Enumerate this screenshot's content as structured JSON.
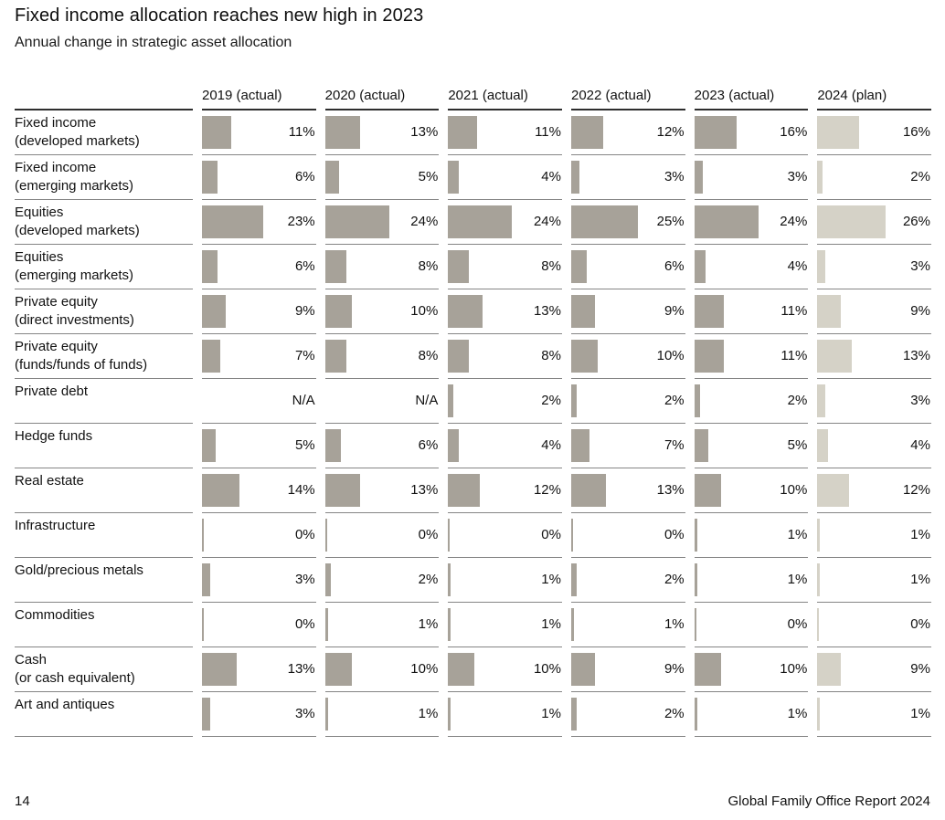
{
  "page": {
    "title": "Fixed income allocation reaches new high in 2023",
    "subtitle": "Annual change in strategic asset allocation",
    "footer_page_number": "14",
    "footer_report_name": "Global Family Office Report 2024"
  },
  "colors": {
    "actual_bar": "#a7a299",
    "plan_bar": "#d5d2c7",
    "row_rule": "#858585",
    "header_rule": "#2e2e2e"
  },
  "chart_data": {
    "type": "bar",
    "title": "Fixed income allocation reaches new high in 2023",
    "subtitle": "Annual change in strategic asset allocation",
    "unit": "percent",
    "value_range": [
      0,
      26
    ],
    "columns": [
      "2019 (actual)",
      "2020 (actual)",
      "2021 (actual)",
      "2022 (actual)",
      "2023 (actual)",
      "2024 (plan)"
    ],
    "rows": [
      {
        "label": "Fixed income",
        "sublabel": "(developed markets)",
        "values": [
          11,
          13,
          11,
          12,
          16,
          16
        ],
        "display": [
          "11%",
          "13%",
          "11%",
          "12%",
          "16%",
          "16%"
        ]
      },
      {
        "label": "Fixed income",
        "sublabel": "(emerging markets)",
        "values": [
          6,
          5,
          4,
          3,
          3,
          2
        ],
        "display": [
          "6%",
          "5%",
          "4%",
          "3%",
          "3%",
          "2%"
        ]
      },
      {
        "label": "Equities",
        "sublabel": "(developed markets)",
        "values": [
          23,
          24,
          24,
          25,
          24,
          26
        ],
        "display": [
          "23%",
          "24%",
          "24%",
          "25%",
          "24%",
          "26%"
        ]
      },
      {
        "label": "Equities",
        "sublabel": "(emerging markets)",
        "values": [
          6,
          8,
          8,
          6,
          4,
          3
        ],
        "display": [
          "6%",
          "8%",
          "8%",
          "6%",
          "4%",
          "3%"
        ]
      },
      {
        "label": "Private equity",
        "sublabel": "(direct investments)",
        "values": [
          9,
          10,
          13,
          9,
          11,
          9
        ],
        "display": [
          "9%",
          "10%",
          "13%",
          "9%",
          "11%",
          "9%"
        ]
      },
      {
        "label": "Private equity",
        "sublabel": "(funds/funds of funds)",
        "values": [
          7,
          8,
          8,
          10,
          11,
          13
        ],
        "display": [
          "7%",
          "8%",
          "8%",
          "10%",
          "11%",
          "13%"
        ]
      },
      {
        "label": "Private debt",
        "sublabel": "",
        "values": [
          null,
          null,
          2,
          2,
          2,
          3
        ],
        "display": [
          "N/A",
          "N/A",
          "2%",
          "2%",
          "2%",
          "3%"
        ]
      },
      {
        "label": "Hedge funds",
        "sublabel": "",
        "values": [
          5,
          6,
          4,
          7,
          5,
          4
        ],
        "display": [
          "5%",
          "6%",
          "4%",
          "7%",
          "5%",
          "4%"
        ]
      },
      {
        "label": "Real estate",
        "sublabel": "",
        "values": [
          14,
          13,
          12,
          13,
          10,
          12
        ],
        "display": [
          "14%",
          "13%",
          "12%",
          "13%",
          "10%",
          "12%"
        ]
      },
      {
        "label": "Infrastructure",
        "sublabel": "",
        "values": [
          0,
          0,
          0,
          0,
          1,
          1
        ],
        "display": [
          "0%",
          "0%",
          "0%",
          "0%",
          "1%",
          "1%"
        ]
      },
      {
        "label": "Gold/precious metals",
        "sublabel": "",
        "values": [
          3,
          2,
          1,
          2,
          1,
          1
        ],
        "display": [
          "3%",
          "2%",
          "1%",
          "2%",
          "1%",
          "1%"
        ]
      },
      {
        "label": "Commodities",
        "sublabel": "",
        "values": [
          0,
          1,
          1,
          1,
          0,
          0
        ],
        "display": [
          "0%",
          "1%",
          "1%",
          "1%",
          "0%",
          "0%"
        ]
      },
      {
        "label": "Cash",
        "sublabel": "(or cash equivalent)",
        "values": [
          13,
          10,
          10,
          9,
          10,
          9
        ],
        "display": [
          "13%",
          "10%",
          "10%",
          "9%",
          "10%",
          "9%"
        ]
      },
      {
        "label": "Art and antiques",
        "sublabel": "",
        "values": [
          3,
          1,
          1,
          2,
          1,
          1
        ],
        "display": [
          "3%",
          "1%",
          "1%",
          "2%",
          "1%",
          "1%"
        ]
      }
    ],
    "legend": {
      "actual_style": "dark taupe bar",
      "plan_style": "light beige bar"
    },
    "layout": {
      "bars": "horizontal",
      "value_labels": "right-aligned per cell",
      "grid": "row separators only"
    }
  }
}
